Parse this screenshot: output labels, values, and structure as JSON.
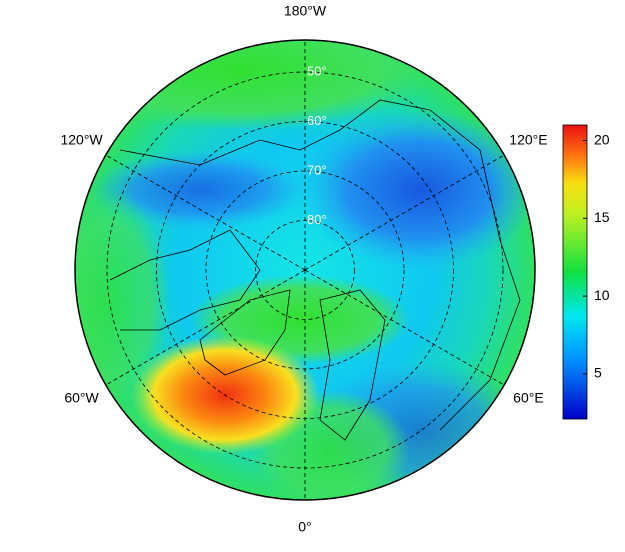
{
  "map": {
    "longitude_labels": [
      {
        "value": -180,
        "label": "180°W"
      },
      {
        "value": -120,
        "label": "120°W"
      },
      {
        "value": 120,
        "label": "120°E"
      },
      {
        "value": -60,
        "label": "60°W"
      },
      {
        "value": 60,
        "label": "60°E"
      },
      {
        "value": 0,
        "label": "0°"
      }
    ],
    "latitude_labels": [
      {
        "value": 50,
        "label": "50°"
      },
      {
        "value": 60,
        "label": "60°"
      },
      {
        "value": 70,
        "label": "70°"
      },
      {
        "value": 80,
        "label": "80°"
      }
    ],
    "colorbar": {
      "lim": [
        2.1,
        21
      ],
      "ticks": [
        5,
        10,
        15,
        20
      ]
    }
  }
}
